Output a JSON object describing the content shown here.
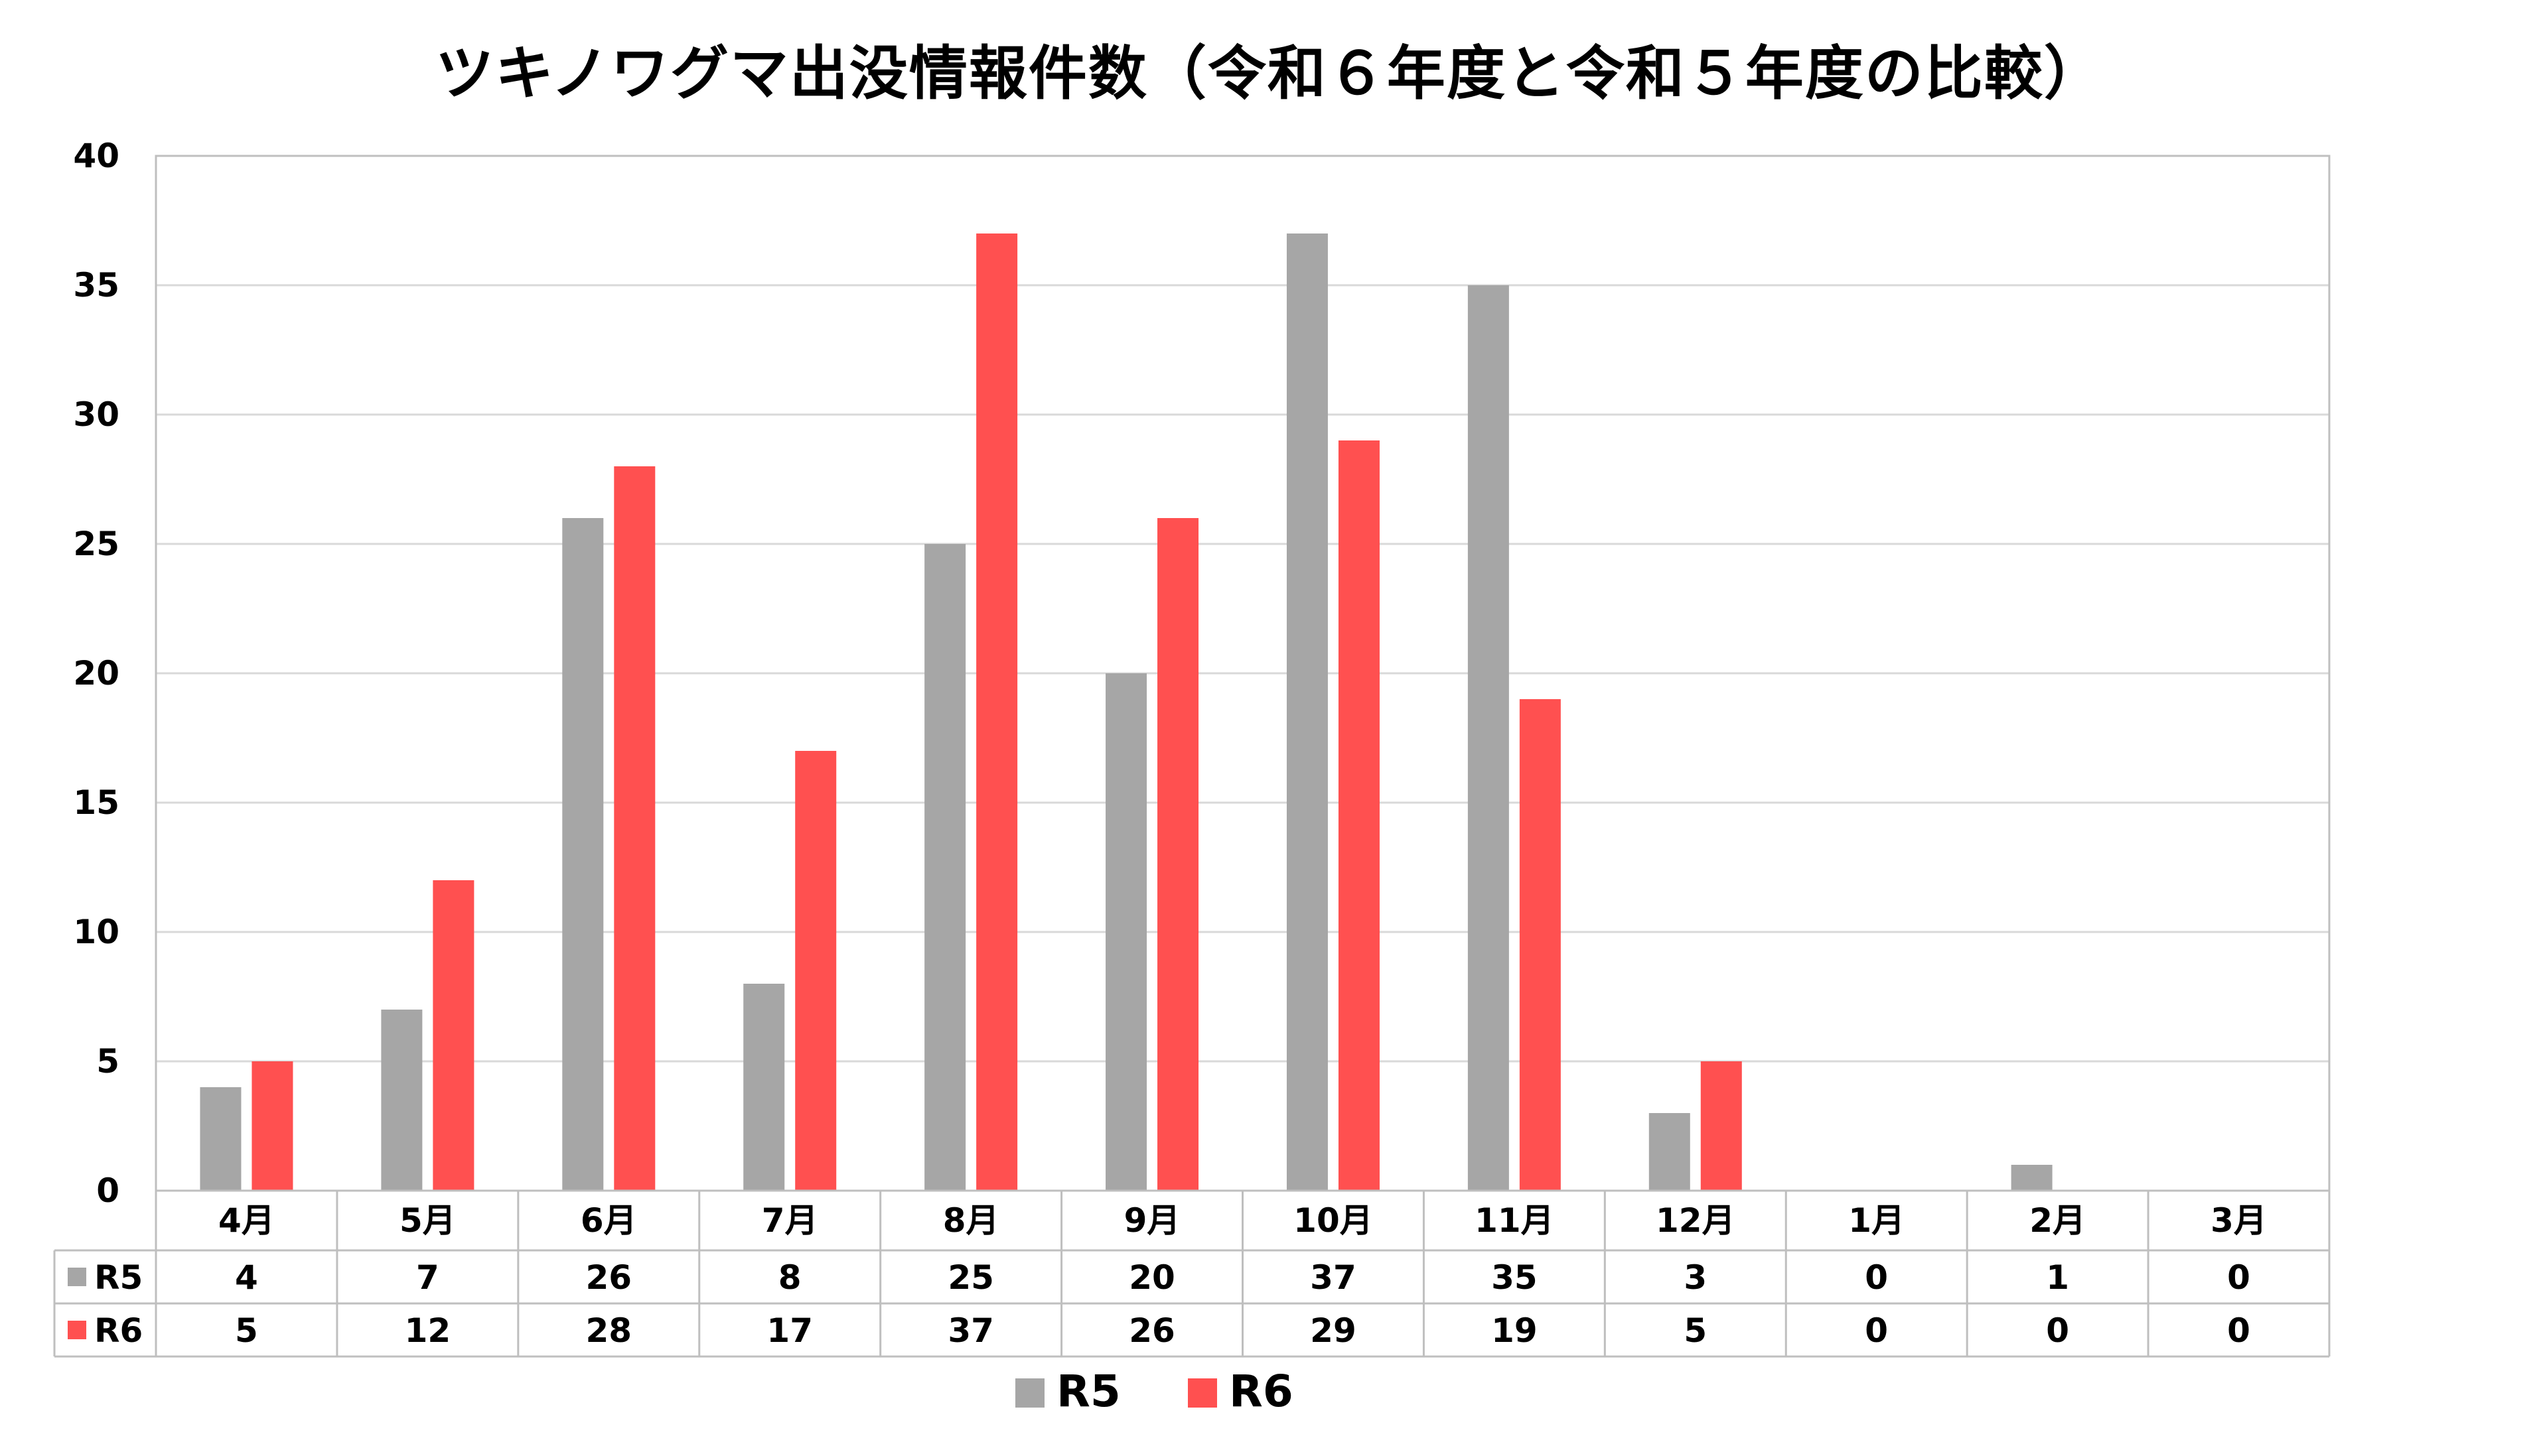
{
  "chart_data": {
    "type": "bar",
    "title": "ツキノワグマ出没情報件数（令和６年度と令和５年度の比較）",
    "xlabel": "",
    "ylabel": "",
    "ylim": [
      0,
      40
    ],
    "yticks": [
      0,
      5,
      10,
      15,
      20,
      25,
      30,
      35,
      40
    ],
    "grid": true,
    "legend_position": "bottom",
    "data_table": true,
    "categories": [
      "4月",
      "5月",
      "6月",
      "7月",
      "8月",
      "9月",
      "10月",
      "11月",
      "12月",
      "1月",
      "2月",
      "3月"
    ],
    "series": [
      {
        "name": "R5",
        "color": "#a6a6a6",
        "values": [
          4,
          7,
          26,
          8,
          25,
          20,
          37,
          35,
          3,
          0,
          1,
          0
        ]
      },
      {
        "name": "R6",
        "color": "#ff5050",
        "values": [
          5,
          12,
          28,
          17,
          37,
          26,
          29,
          19,
          5,
          0,
          0,
          0
        ]
      }
    ]
  }
}
